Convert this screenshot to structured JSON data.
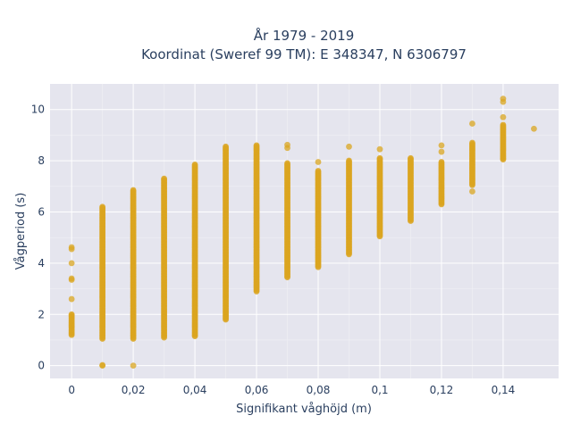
{
  "chart_data": {
    "type": "scatter",
    "title": "År 1979 - 2019",
    "subtitle": "Koordinat (Sweref 99 TM): E 348347, N 6306797",
    "xlabel": "Signifikant våghöjd (m)",
    "ylabel": "Vågperiod (s)",
    "xlim": [
      -0.007,
      0.158
    ],
    "ylim": [
      -0.5,
      11
    ],
    "x_ticks": [
      0,
      0.02,
      0.04,
      0.06,
      0.08,
      0.1,
      0.12,
      0.14
    ],
    "x_tick_labels": [
      "0",
      "0,02",
      "0,04",
      "0,06",
      "0,08",
      "0,1",
      "0,12",
      "0,14"
    ],
    "y_ticks": [
      0,
      2,
      4,
      6,
      8,
      10
    ],
    "y_tick_labels": [
      "0",
      "2",
      "4",
      "6",
      "8",
      "10"
    ],
    "grid": true,
    "legend": false,
    "marker_color": "#DAA520",
    "plot_bg": "#E5E5EE",
    "clusters": [
      {
        "x": 0.0,
        "y_range": [
          1.2,
          2.0
        ],
        "points": [
          4.62,
          4.55,
          4.0,
          3.4,
          3.35,
          2.6
        ]
      },
      {
        "x": 0.01,
        "y_range": [
          1.05,
          6.2
        ],
        "points": [
          0.0,
          0.02
        ]
      },
      {
        "x": 0.02,
        "y_range": [
          1.05,
          6.85
        ],
        "points": [
          0.0
        ]
      },
      {
        "x": 0.03,
        "y_range": [
          1.1,
          7.3
        ],
        "points": []
      },
      {
        "x": 0.04,
        "y_range": [
          1.15,
          7.85
        ],
        "points": []
      },
      {
        "x": 0.05,
        "y_range": [
          1.8,
          8.55
        ],
        "points": []
      },
      {
        "x": 0.06,
        "y_range": [
          2.9,
          8.6
        ],
        "points": []
      },
      {
        "x": 0.07,
        "y_range": [
          3.45,
          7.9
        ],
        "points": [
          8.62,
          8.5
        ]
      },
      {
        "x": 0.08,
        "y_range": [
          3.85,
          7.6
        ],
        "points": [
          7.95
        ]
      },
      {
        "x": 0.09,
        "y_range": [
          4.35,
          8.0
        ],
        "points": [
          8.55
        ]
      },
      {
        "x": 0.1,
        "y_range": [
          5.05,
          8.1
        ],
        "points": [
          8.45
        ]
      },
      {
        "x": 0.11,
        "y_range": [
          5.65,
          8.1
        ],
        "points": []
      },
      {
        "x": 0.12,
        "y_range": [
          6.3,
          7.95
        ],
        "points": [
          8.6,
          8.35
        ]
      },
      {
        "x": 0.13,
        "y_range": [
          7.05,
          8.7
        ],
        "points": [
          9.45,
          6.8
        ]
      },
      {
        "x": 0.14,
        "y_range": [
          8.05,
          9.4
        ],
        "points": [
          10.42,
          10.3,
          9.7
        ]
      },
      {
        "x": 0.15,
        "y_range": null,
        "points": [
          9.25
        ]
      }
    ]
  }
}
